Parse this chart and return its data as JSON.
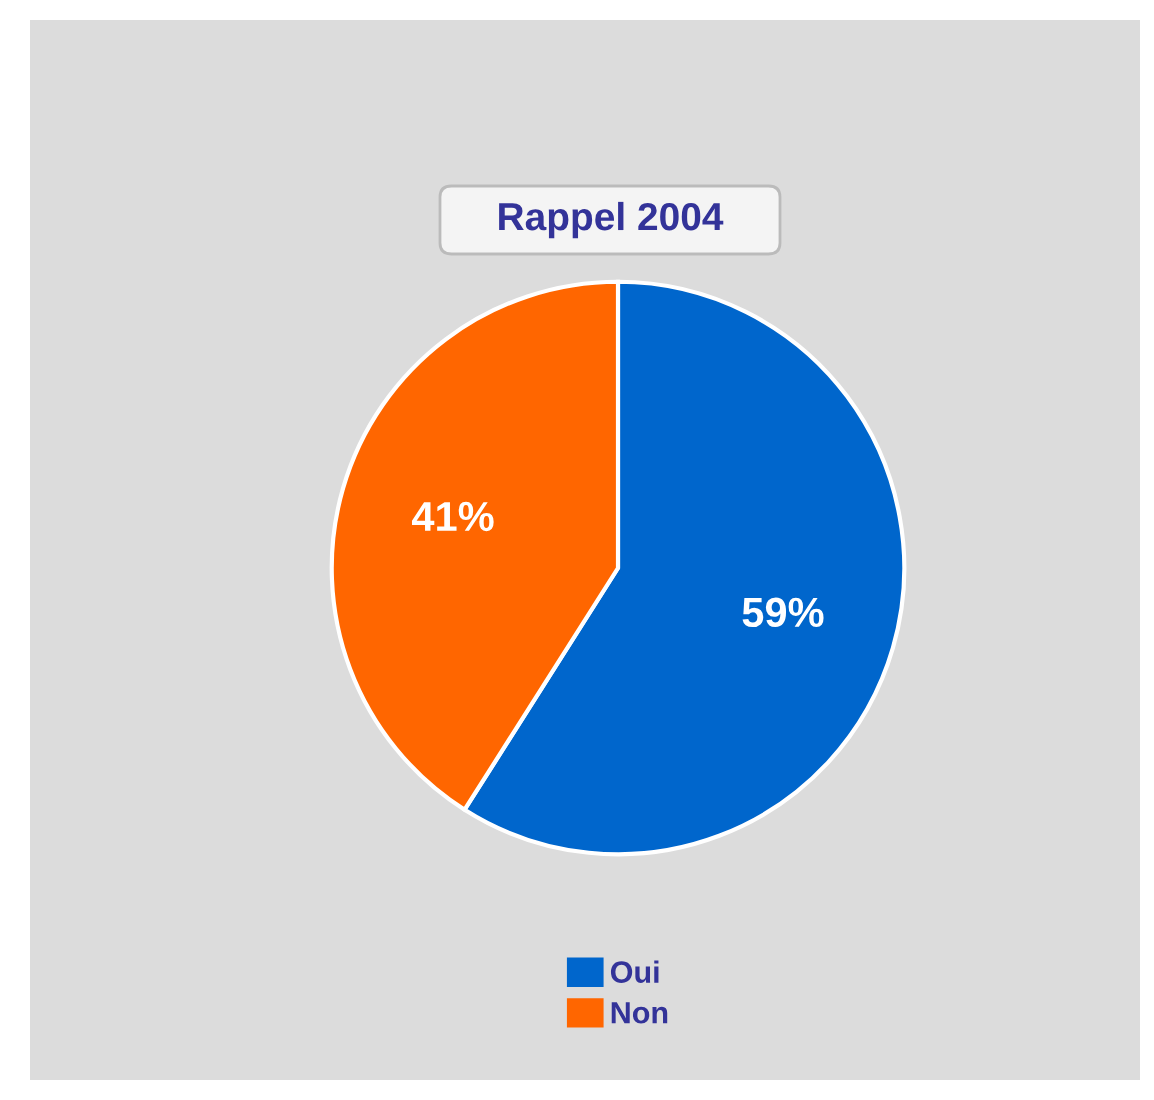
{
  "chart_data": {
    "type": "pie",
    "title": "Rappel 2004",
    "categories": [
      "Oui",
      "Non"
    ],
    "values": [
      59,
      41
    ],
    "colors": [
      "#0066cc",
      "#ff6600"
    ],
    "value_labels": [
      "59%",
      "41%"
    ],
    "legend": "bottom"
  }
}
